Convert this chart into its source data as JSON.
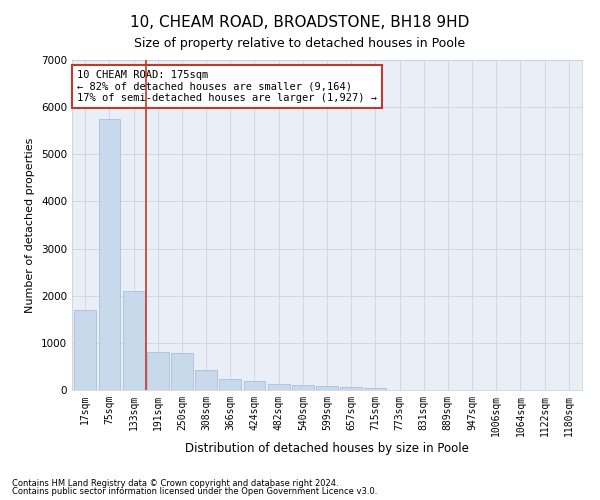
{
  "title": "10, CHEAM ROAD, BROADSTONE, BH18 9HD",
  "subtitle": "Size of property relative to detached houses in Poole",
  "xlabel": "Distribution of detached houses by size in Poole",
  "ylabel": "Number of detached properties",
  "categories": [
    "17sqm",
    "75sqm",
    "133sqm",
    "191sqm",
    "250sqm",
    "308sqm",
    "366sqm",
    "424sqm",
    "482sqm",
    "540sqm",
    "599sqm",
    "657sqm",
    "715sqm",
    "773sqm",
    "831sqm",
    "889sqm",
    "947sqm",
    "1006sqm",
    "1064sqm",
    "1122sqm",
    "1180sqm"
  ],
  "values": [
    1700,
    5750,
    2100,
    800,
    790,
    420,
    240,
    190,
    130,
    115,
    95,
    65,
    50,
    0,
    0,
    0,
    0,
    0,
    0,
    0,
    0
  ],
  "bar_color": "#c9d9ec",
  "bar_edge_color": "#a0b8d8",
  "vline_color": "#c0392b",
  "annotation_box_text": "10 CHEAM ROAD: 175sqm\n← 82% of detached houses are smaller (9,164)\n17% of semi-detached houses are larger (1,927) →",
  "annotation_box_color": "#c0392b",
  "annotation_box_facecolor": "white",
  "ylim": [
    0,
    7000
  ],
  "yticks": [
    0,
    1000,
    2000,
    3000,
    4000,
    5000,
    6000,
    7000
  ],
  "grid_color": "#d0d8e8",
  "background_color": "#eaeff7",
  "footnote1": "Contains HM Land Registry data © Crown copyright and database right 2024.",
  "footnote2": "Contains public sector information licensed under the Open Government Licence v3.0.",
  "title_fontsize": 11,
  "subtitle_fontsize": 9,
  "tick_fontsize": 7,
  "ylabel_fontsize": 8,
  "xlabel_fontsize": 8.5,
  "annot_fontsize": 7.5
}
